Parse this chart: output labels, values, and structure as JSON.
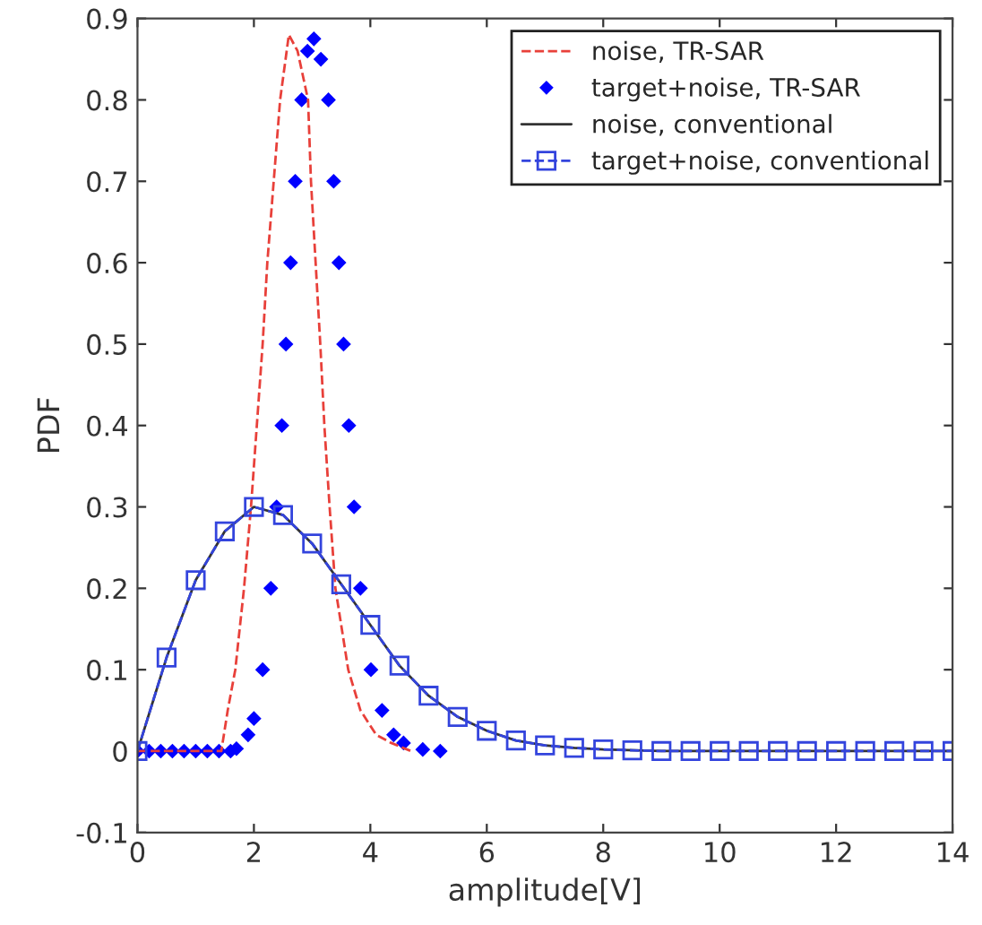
{
  "chart_data": {
    "type": "line",
    "xlabel": "amplitude[V]",
    "ylabel": "PDF",
    "xlim": [
      0,
      14
    ],
    "xticks": [
      0,
      2,
      4,
      6,
      8,
      10,
      12,
      14
    ],
    "ylim": [
      -0.1,
      0.9
    ],
    "yticks": [
      -0.1,
      0,
      0.1,
      0.2,
      0.3,
      0.4,
      0.5,
      0.6,
      0.7,
      0.8,
      0.9
    ],
    "grid": false,
    "legend": "top right",
    "series": [
      {
        "name": "noise, TR-SAR",
        "color": "#e8403a",
        "line_style": "dashed",
        "marker": "none",
        "x": [
          0,
          1.44,
          1.55,
          1.68,
          1.83,
          1.95,
          2.05,
          2.15,
          2.23,
          2.34,
          2.45,
          2.6,
          2.75,
          2.93,
          2.98,
          3.06,
          3.14,
          3.21,
          3.3,
          3.4,
          3.62,
          3.83,
          4.1,
          4.36,
          4.7
        ],
        "values": [
          0,
          0,
          0.05,
          0.1,
          0.2,
          0.3,
          0.4,
          0.5,
          0.6,
          0.7,
          0.8,
          0.88,
          0.86,
          0.8,
          0.7,
          0.6,
          0.5,
          0.4,
          0.3,
          0.2,
          0.1,
          0.05,
          0.02,
          0.01,
          0
        ]
      },
      {
        "name": "target+noise, TR-SAR",
        "type": "scatter",
        "color": "#0000ff",
        "marker": "diamond",
        "x": [
          0,
          0.2,
          0.4,
          0.6,
          0.8,
          1,
          1.2,
          1.4,
          1.6,
          1.7,
          1.9,
          2.0,
          2.15,
          2.29,
          2.39,
          2.48,
          2.55,
          2.63,
          2.71,
          2.82,
          2.92,
          3.03,
          3.15,
          3.28,
          3.37,
          3.46,
          3.54,
          3.63,
          3.72,
          3.83,
          4.01,
          4.2,
          4.4,
          4.57,
          4.9,
          5.2
        ],
        "values": [
          0,
          0,
          0,
          0,
          0,
          0,
          0,
          0,
          0,
          0.003,
          0.02,
          0.04,
          0.1,
          0.2,
          0.3,
          0.4,
          0.5,
          0.6,
          0.7,
          0.8,
          0.86,
          0.875,
          0.85,
          0.8,
          0.7,
          0.6,
          0.5,
          0.4,
          0.3,
          0.2,
          0.1,
          0.05,
          0.02,
          0.01,
          0.002,
          0
        ]
      },
      {
        "name": "noise, conventional",
        "color": "#333333",
        "line_style": "solid",
        "marker": "none",
        "x": [
          0,
          0.5,
          1,
          1.5,
          2,
          2.5,
          3,
          3.5,
          4,
          4.5,
          5,
          5.5,
          6,
          6.5,
          7,
          7.5,
          8,
          9,
          10,
          11,
          12,
          13,
          14
        ],
        "values": [
          0,
          0.115,
          0.21,
          0.27,
          0.3,
          0.29,
          0.255,
          0.205,
          0.155,
          0.105,
          0.068,
          0.042,
          0.025,
          0.013,
          0.007,
          0.004,
          0.002,
          0,
          0,
          0,
          0,
          0,
          0
        ]
      },
      {
        "name": "target+noise, conventional",
        "color": "#3344dd",
        "line_style": "dashed",
        "marker": "square",
        "x": [
          0,
          0.5,
          1,
          1.5,
          2,
          2.5,
          3,
          3.5,
          4,
          4.5,
          5,
          5.5,
          6,
          6.5,
          7,
          7.5,
          8,
          8.5,
          9,
          9.5,
          10,
          10.5,
          11,
          11.5,
          12,
          12.5,
          13,
          13.5,
          14
        ],
        "values": [
          0,
          0.115,
          0.21,
          0.27,
          0.3,
          0.29,
          0.255,
          0.205,
          0.155,
          0.105,
          0.068,
          0.042,
          0.025,
          0.013,
          0.007,
          0.004,
          0.002,
          0.001,
          0,
          0,
          0,
          0,
          0,
          0,
          0,
          0,
          0,
          0,
          0
        ]
      }
    ]
  }
}
